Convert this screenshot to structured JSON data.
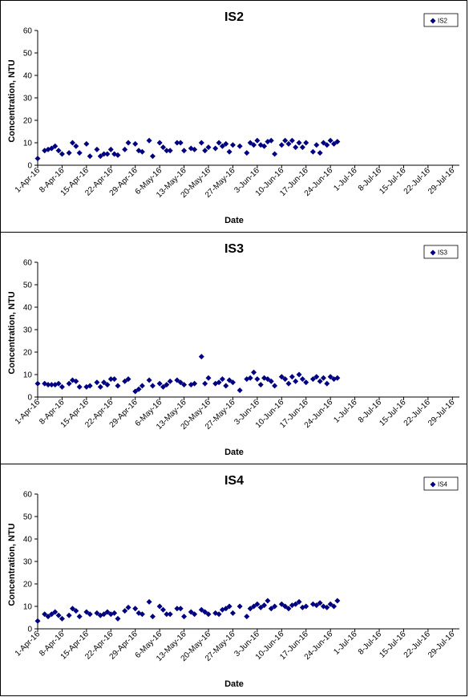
{
  "chart_data": [
    {
      "type": "scatter",
      "title": "IS2",
      "xlabel": "Date",
      "ylabel": "Concentration, NTU",
      "ylim": [
        0,
        60
      ],
      "y_ticks": [
        "0",
        "10",
        "20",
        "30",
        "40",
        "50",
        "60"
      ],
      "x_ticks": [
        "1-Apr-16",
        "8-Apr-16",
        "15-Apr-16",
        "22-Apr-16",
        "29-Apr-16",
        "6-May-16",
        "13-May-16",
        "20-May-16",
        "27-May-16",
        "3-Jun-16",
        "10-Jun-16",
        "17-Jun-16",
        "24-Jun-16",
        "1-Jul-16",
        "8-Jul-16",
        "15-Jul-16",
        "22-Jul-16",
        "29-Jul-16"
      ],
      "grid": false,
      "legend_position": "top-right",
      "series": [
        {
          "name": "IS2",
          "color": "#000080",
          "x": [
            0,
            2,
            3,
            4,
            5,
            6,
            7,
            9,
            10,
            11,
            12,
            14,
            15,
            17,
            18,
            19,
            20,
            21,
            22,
            23,
            25,
            26,
            28,
            29,
            30,
            32,
            33,
            35,
            36,
            37,
            38,
            40,
            41,
            42,
            44,
            45,
            47,
            48,
            49,
            51,
            52,
            53,
            54,
            55,
            56,
            58,
            60,
            61,
            62,
            63,
            64,
            65,
            66,
            67,
            68,
            70,
            71,
            72,
            73,
            74,
            75,
            76,
            77,
            79,
            80,
            81,
            82,
            83,
            84,
            85,
            86
          ],
          "y": [
            3,
            6.5,
            7,
            7.5,
            8.5,
            6.5,
            5,
            5.5,
            10,
            8.5,
            5.5,
            9.5,
            4,
            7,
            4,
            5,
            5,
            7,
            5,
            4.5,
            7,
            10,
            9.5,
            6.5,
            6,
            11,
            4,
            10,
            8,
            6.5,
            6.5,
            10,
            10,
            6.5,
            7.5,
            7,
            10,
            6.5,
            8,
            7.5,
            10,
            8.5,
            9.5,
            6,
            9,
            8.5,
            5.5,
            10,
            9,
            11,
            9,
            8.5,
            10.5,
            11,
            5,
            9,
            11,
            9.5,
            11,
            8,
            10,
            8,
            10,
            6,
            9,
            5.5,
            10,
            9,
            11,
            9.5,
            10.5
          ]
        }
      ]
    },
    {
      "type": "scatter",
      "title": "IS3",
      "xlabel": "Date",
      "ylabel": "Concentration, NTU",
      "ylim": [
        0,
        60
      ],
      "y_ticks": [
        "0",
        "10",
        "20",
        "30",
        "40",
        "50",
        "60"
      ],
      "x_ticks": [
        "1-Apr-16",
        "8-Apr-16",
        "15-Apr-16",
        "22-Apr-16",
        "29-Apr-16",
        "6-May-16",
        "13-May-16",
        "20-May-16",
        "27-May-16",
        "3-Jun-16",
        "10-Jun-16",
        "17-Jun-16",
        "24-Jun-16",
        "1-Jul-16",
        "8-Jul-16",
        "15-Jul-16",
        "22-Jul-16",
        "29-Jul-16"
      ],
      "grid": false,
      "legend_position": "top-right",
      "series": [
        {
          "name": "IS3",
          "color": "#000080",
          "x": [
            0,
            2,
            3,
            4,
            5,
            6,
            7,
            9,
            10,
            11,
            12,
            14,
            15,
            17,
            18,
            19,
            20,
            21,
            22,
            23,
            25,
            26,
            28,
            29,
            30,
            32,
            33,
            35,
            36,
            37,
            38,
            40,
            41,
            42,
            44,
            45,
            47,
            48,
            49,
            51,
            52,
            53,
            54,
            55,
            56,
            58,
            60,
            61,
            62,
            63,
            64,
            65,
            66,
            67,
            68,
            70,
            71,
            72,
            73,
            74,
            75,
            76,
            77,
            79,
            80,
            81,
            82,
            83,
            84,
            85,
            86
          ],
          "y": [
            6,
            6,
            5.5,
            5.5,
            5.5,
            6,
            4.5,
            6,
            7.5,
            7,
            4.5,
            4.5,
            5,
            6.5,
            4.5,
            6.5,
            5.5,
            8,
            8,
            5,
            7,
            8,
            2.5,
            3.5,
            5,
            7.5,
            5,
            6,
            4.5,
            5.5,
            7,
            7.5,
            6.5,
            5.5,
            5.5,
            6,
            18,
            6,
            8.5,
            6,
            6.5,
            8,
            5,
            7.5,
            6.5,
            3,
            8,
            8.5,
            11,
            8,
            5.5,
            8.5,
            8,
            7,
            5,
            9,
            8,
            6,
            9,
            7,
            10,
            8,
            6.5,
            8,
            9,
            7,
            8.5,
            6,
            9,
            8,
            8.5
          ]
        }
      ]
    },
    {
      "type": "scatter",
      "title": "IS4",
      "xlabel": "Date",
      "ylabel": "Concentration, NTU",
      "ylim": [
        0,
        60
      ],
      "y_ticks": [
        "0",
        "10",
        "20",
        "30",
        "40",
        "50",
        "60"
      ],
      "x_ticks": [
        "1-Apr-16",
        "8-Apr-16",
        "15-Apr-16",
        "22-Apr-16",
        "29-Apr-16",
        "6-May-16",
        "13-May-16",
        "20-May-16",
        "27-May-16",
        "3-Jun-16",
        "10-Jun-16",
        "17-Jun-16",
        "24-Jun-16",
        "1-Jul-16",
        "8-Jul-16",
        "15-Jul-16",
        "22-Jul-16",
        "29-Jul-16"
      ],
      "grid": false,
      "legend_position": "top-right",
      "series": [
        {
          "name": "IS4",
          "color": "#000080",
          "x": [
            0,
            2,
            3,
            4,
            5,
            6,
            7,
            9,
            10,
            11,
            12,
            14,
            15,
            17,
            18,
            19,
            20,
            21,
            22,
            23,
            25,
            26,
            28,
            29,
            30,
            32,
            33,
            35,
            36,
            37,
            38,
            40,
            41,
            42,
            44,
            45,
            47,
            48,
            49,
            51,
            52,
            53,
            54,
            55,
            56,
            58,
            60,
            61,
            62,
            63,
            64,
            65,
            66,
            67,
            68,
            70,
            71,
            72,
            73,
            74,
            75,
            76,
            77,
            79,
            80,
            81,
            82,
            83,
            84,
            85,
            86
          ],
          "y": [
            3.5,
            6.5,
            5.5,
            6.5,
            7.5,
            6,
            4.5,
            6,
            9,
            8,
            5.5,
            7.5,
            6.5,
            7,
            6,
            6.5,
            7.5,
            6.5,
            7,
            4.5,
            8,
            9.5,
            9,
            7,
            6.5,
            12,
            5.5,
            10,
            8.5,
            6.5,
            6.5,
            9,
            9,
            5.5,
            7.5,
            6.5,
            8.5,
            7.5,
            6.5,
            7,
            6.5,
            8.5,
            9,
            10,
            7,
            10,
            5.5,
            9,
            10,
            11,
            9.5,
            10.5,
            12.5,
            9,
            10,
            11,
            10,
            9,
            10.5,
            11,
            12,
            9.5,
            10,
            11,
            10.5,
            11.5,
            10,
            9.5,
            11,
            10,
            12.5
          ]
        }
      ]
    }
  ]
}
